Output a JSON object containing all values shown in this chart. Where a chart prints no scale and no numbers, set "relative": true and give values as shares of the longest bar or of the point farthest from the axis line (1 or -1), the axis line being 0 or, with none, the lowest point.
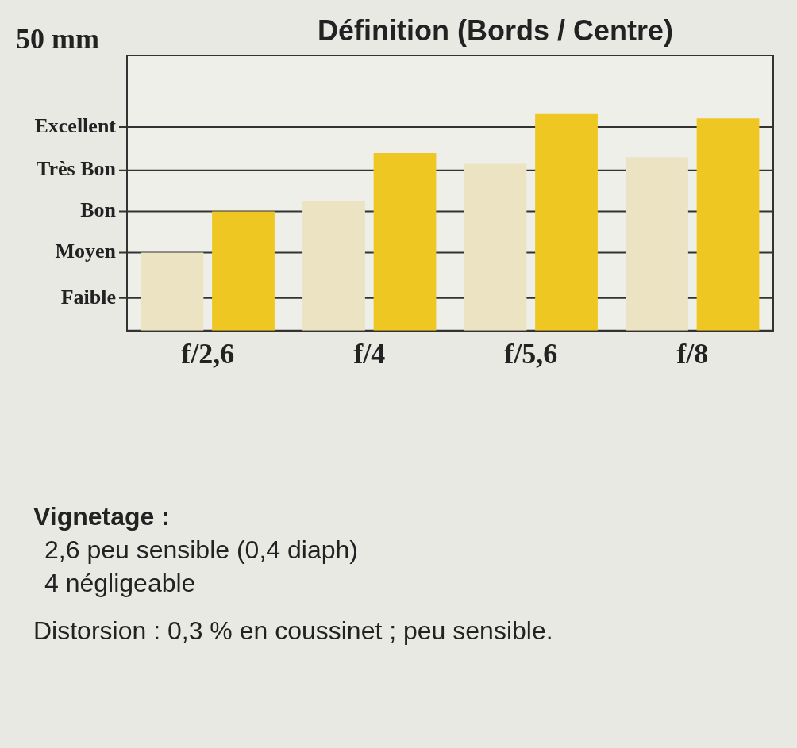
{
  "chart_data": {
    "type": "bar",
    "title": "Définition (Bords / Centre)",
    "subtitle": "50 mm",
    "relative": true,
    "categories": [
      "f/2,6",
      "f/4",
      "f/5,6",
      "f/8"
    ],
    "series": [
      {
        "color": "#ebe3c2",
        "values": [
          0.36,
          0.6,
          0.77,
          0.8
        ]
      },
      {
        "color": "#efc722",
        "values": [
          0.55,
          0.82,
          1,
          0.98
        ]
      }
    ],
    "ref_lines": [
      {
        "axis": "y",
        "value": 0.15,
        "label": "Faible",
        "color": "#333333"
      },
      {
        "axis": "y",
        "value": 0.36,
        "label": "Moyen",
        "color": "#333333"
      },
      {
        "axis": "y",
        "value": 0.55,
        "label": "Bon",
        "color": "#333333"
      },
      {
        "axis": "y",
        "value": 0.74,
        "label": "Très Bon",
        "color": "#333333"
      },
      {
        "axis": "y",
        "value": 0.94,
        "label": "Excellent",
        "color": "#333333"
      }
    ],
    "legend": false,
    "annotations": [
      "Vignetage :",
      "2,6 peu sensible (0,4 diaph)",
      "4 négligeable",
      "Distorsion : 0,3 % en coussinet ; peu sensible."
    ]
  }
}
